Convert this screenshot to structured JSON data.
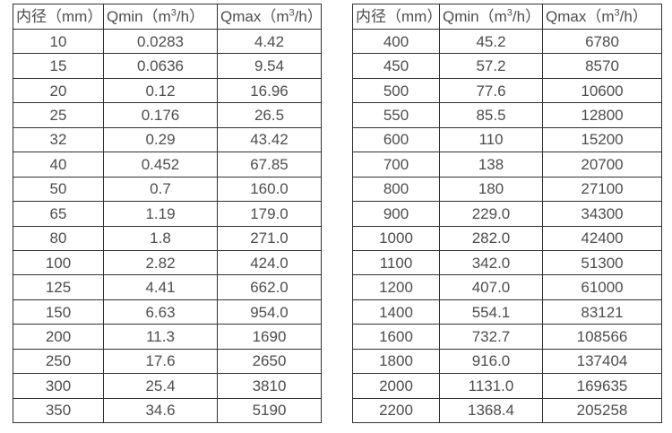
{
  "colors": {
    "background": "#ffffff",
    "border": "#303030",
    "text": "#4d4d4d"
  },
  "header": {
    "diameter_label": "内径（mm）",
    "qmin_pre": "Qmin（m",
    "qmin_sup": "3",
    "qmin_post": "/h）",
    "qmax_pre": "Qmax（m",
    "qmax_sup": "3",
    "qmax_post": "/h）"
  },
  "tables": {
    "left": {
      "rows": [
        [
          "10",
          "0.0283",
          "4.42"
        ],
        [
          "15",
          "0.0636",
          "9.54"
        ],
        [
          "20",
          "0.12",
          "16.96"
        ],
        [
          "25",
          "0.176",
          "26.5"
        ],
        [
          "32",
          "0.29",
          "43.42"
        ],
        [
          "40",
          "0.452",
          "67.85"
        ],
        [
          "50",
          "0.7",
          "160.0"
        ],
        [
          "65",
          "1.19",
          "179.0"
        ],
        [
          "80",
          "1.8",
          "271.0"
        ],
        [
          "100",
          "2.82",
          "424.0"
        ],
        [
          "125",
          "4.41",
          "662.0"
        ],
        [
          "150",
          "6.63",
          "954.0"
        ],
        [
          "200",
          "11.3",
          "1690"
        ],
        [
          "250",
          "17.6",
          "2650"
        ],
        [
          "300",
          "25.4",
          "3810"
        ],
        [
          "350",
          "34.6",
          "5190"
        ]
      ]
    },
    "right": {
      "rows": [
        [
          "400",
          "45.2",
          "6780"
        ],
        [
          "450",
          "57.2",
          "8570"
        ],
        [
          "500",
          "77.6",
          "10600"
        ],
        [
          "550",
          "85.5",
          "12800"
        ],
        [
          "600",
          "110",
          "15200"
        ],
        [
          "700",
          "138",
          "20700"
        ],
        [
          "800",
          "180",
          "27100"
        ],
        [
          "900",
          "229.0",
          "34300"
        ],
        [
          "1000",
          "282.0",
          "42400"
        ],
        [
          "1100",
          "342.0",
          "51300"
        ],
        [
          "1200",
          "407.0",
          "61000"
        ],
        [
          "1400",
          "554.1",
          "83121"
        ],
        [
          "1600",
          "732.7",
          "108566"
        ],
        [
          "1800",
          "916.0",
          "137404"
        ],
        [
          "2000",
          "1131.0",
          "169635"
        ],
        [
          "2200",
          "1368.4",
          "205258"
        ]
      ]
    }
  }
}
